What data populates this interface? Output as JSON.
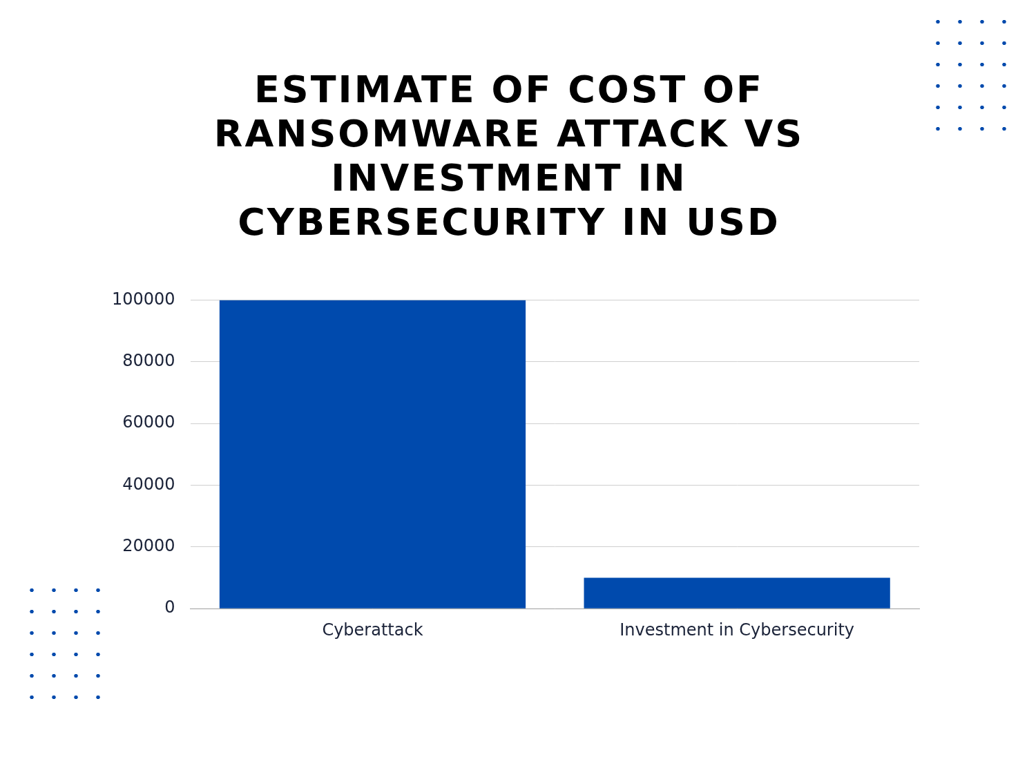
{
  "chart_data": {
    "type": "bar",
    "title": "ESTIMATE OF COST OF RANSOMWARE ATTACK VS INVESTMENT IN CYBERSECURITY IN USD",
    "categories": [
      "Cyberattack",
      "Investment in Cybersecurity"
    ],
    "values": [
      100000,
      10000
    ],
    "color": "#004aad",
    "ylim": [
      0,
      100000
    ],
    "yticks": [
      0,
      20000,
      40000,
      60000,
      80000,
      100000
    ],
    "grid": true
  }
}
